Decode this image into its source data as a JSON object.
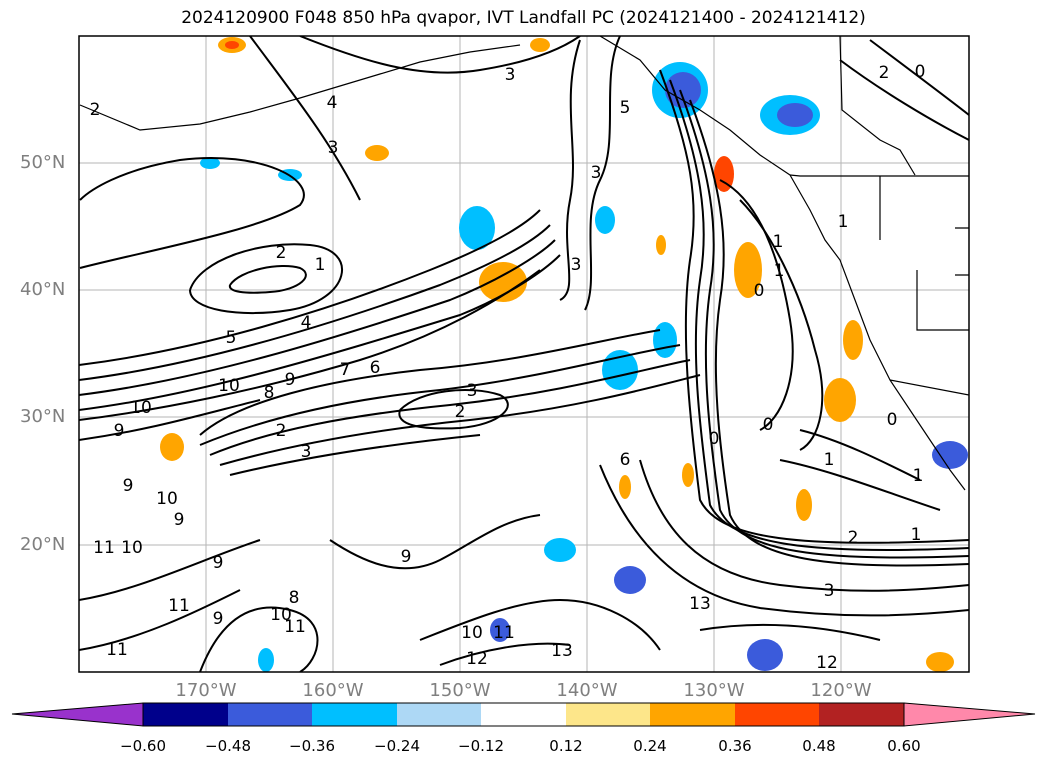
{
  "title": "2024120900 F048 850 hPa qvapor, IVT Landfall PC (2024121400 - 2024121412)",
  "map": {
    "lat_labels": [
      "50°N",
      "40°N",
      "30°N",
      "20°N"
    ],
    "lon_labels": [
      "170°W",
      "160°W",
      "150°W",
      "140°W",
      "130°W",
      "120°W"
    ],
    "extent": {
      "lon": [
        -180,
        -110
      ],
      "lat": [
        10,
        60
      ]
    },
    "grid": true
  },
  "contour_labels": [
    "2",
    "4",
    "3",
    "3",
    "5",
    "3",
    "2",
    "1",
    "4",
    "5",
    "10",
    "8",
    "9",
    "7",
    "6",
    "10",
    "9",
    "3",
    "2",
    "2",
    "3",
    "6",
    "9",
    "10",
    "9",
    "11",
    "10",
    "9",
    "9",
    "11",
    "8",
    "10",
    "11",
    "9",
    "11",
    "10",
    "12",
    "11",
    "13",
    "13",
    "12",
    "3",
    "2",
    "1",
    "1",
    "1",
    "0",
    "0",
    "0",
    "1",
    "1",
    "0",
    "1",
    "2",
    "0",
    "3"
  ],
  "colorbar": {
    "ticks": [
      "−0.60",
      "−0.48",
      "−0.36",
      "−0.24",
      "−0.12",
      "0.12",
      "0.24",
      "0.36",
      "0.48",
      "0.60"
    ],
    "colors": [
      "#9932cc",
      "#00008b",
      "#3b5bdb",
      "#00bfff",
      "#add8f5",
      "#ffffff",
      "#fde68a",
      "#ffa500",
      "#ff4500",
      "#b22222",
      "#ff88aa"
    ]
  }
}
